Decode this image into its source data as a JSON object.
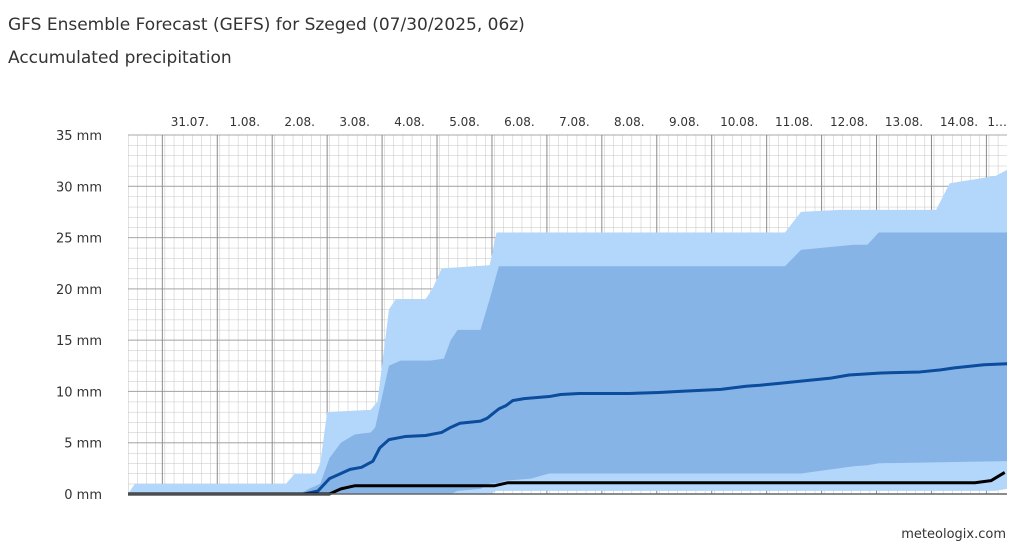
{
  "chart_data": {
    "type": "ensemble",
    "title": "GFS Ensemble Forecast (GEFS) for Szeged (07/30/2025, 06z)",
    "subtitle": "Accumulated precipitation",
    "credit": "meteologix.com",
    "xlim": [
      9,
      393
    ],
    "xticks": [
      {
        "value": 24,
        "label": "31.07."
      },
      {
        "value": 48,
        "label": "1.08."
      },
      {
        "value": 72,
        "label": "2.08."
      },
      {
        "value": 96,
        "label": "3.08."
      },
      {
        "value": 120,
        "label": "4.08."
      },
      {
        "value": 144,
        "label": "5.08."
      },
      {
        "value": 168,
        "label": "6.08."
      },
      {
        "value": 192,
        "label": "7.08."
      },
      {
        "value": 216,
        "label": "8.08."
      },
      {
        "value": 240,
        "label": "9.08."
      },
      {
        "value": 264,
        "label": "10.08."
      },
      {
        "value": 288,
        "label": "11.08."
      },
      {
        "value": 312,
        "label": "12.08."
      },
      {
        "value": 336,
        "label": "13.08."
      },
      {
        "value": 360,
        "label": "14.08."
      },
      {
        "value": 384,
        "label": "1…"
      }
    ],
    "ylim": [
      0,
      35
    ],
    "yticks": [
      {
        "value": 0,
        "label": "0 mm"
      },
      {
        "value": 5,
        "label": "5 mm"
      },
      {
        "value": 10,
        "label": "10 mm"
      },
      {
        "value": 15,
        "label": "15 mm"
      },
      {
        "value": 20,
        "label": "20 mm"
      },
      {
        "value": 25,
        "label": "25 mm"
      },
      {
        "value": 30,
        "label": "30 mm"
      },
      {
        "value": 35,
        "label": "35 mm"
      }
    ],
    "grid": true,
    "bands": [
      {
        "color": "#b3d6fb",
        "x": [
          9,
          12,
          78,
          82,
          91,
          93,
          96,
          115,
          118,
          123,
          126,
          139,
          142,
          146,
          167,
          170,
          296,
          303,
          320,
          362,
          368,
          388,
          393
        ],
        "high": [
          0,
          1,
          1,
          2,
          2,
          3,
          8,
          8.2,
          9,
          18,
          19,
          19,
          20,
          22,
          22.3,
          25.5,
          25.5,
          27.5,
          27.7,
          27.7,
          30.3,
          31,
          31.6
        ],
        "low": [
          0,
          0,
          0,
          0,
          0,
          0,
          0,
          0,
          0,
          0,
          0,
          0,
          0,
          0,
          0,
          0.3,
          0.3,
          0.3,
          0.3,
          0.3,
          0.3,
          0.3,
          0.5
        ]
      },
      {
        "color": "#87b4e6",
        "x": [
          9,
          84,
          88,
          93,
          97,
          102,
          108,
          115,
          117,
          123,
          128,
          141,
          147,
          150,
          153,
          163,
          167,
          171,
          174,
          185,
          193,
          296,
          303,
          326,
          332,
          337,
          393
        ],
        "high": [
          0,
          0,
          0.5,
          1,
          3.5,
          5,
          5.8,
          6,
          6.5,
          12.5,
          13,
          13,
          13.2,
          15,
          16,
          16,
          19,
          22.2,
          22.2,
          22.2,
          22.2,
          22.2,
          23.8,
          24.3,
          24.3,
          25.5,
          25.5
        ],
        "low": [
          0,
          0,
          0,
          0,
          0,
          0,
          0,
          0,
          0,
          0,
          0,
          0,
          0,
          0,
          0.3,
          0.5,
          1,
          1.1,
          1.3,
          1.5,
          2,
          2,
          2,
          2.7,
          2.8,
          3,
          3.2
        ]
      }
    ],
    "series": [
      {
        "color": "#0b4c9c",
        "x": [
          9,
          86,
          92,
          97,
          102,
          106,
          111,
          116,
          119,
          123,
          130,
          139,
          146,
          150,
          154,
          163,
          166,
          171,
          174,
          177,
          182,
          193,
          198,
          206,
          228,
          241,
          250,
          268,
          279,
          285,
          294,
          303,
          316,
          324,
          338,
          355,
          364,
          370,
          383,
          393
        ],
        "values": [
          0,
          0,
          0.3,
          1.5,
          2,
          2.4,
          2.6,
          3.2,
          4.5,
          5.3,
          5.6,
          5.7,
          6,
          6.5,
          6.9,
          7.1,
          7.4,
          8.3,
          8.6,
          9.1,
          9.3,
          9.5,
          9.7,
          9.8,
          9.8,
          9.9,
          10,
          10.2,
          10.5,
          10.6,
          10.8,
          11,
          11.3,
          11.6,
          11.8,
          11.9,
          12.1,
          12.3,
          12.6,
          12.7
        ]
      },
      {
        "color": "#000000",
        "x": [
          9,
          97,
          102,
          106,
          108,
          169,
          175,
          379,
          386,
          392
        ],
        "values": [
          0,
          0,
          0.5,
          0.7,
          0.8,
          0.8,
          1.1,
          1.1,
          1.3,
          2.1
        ]
      }
    ]
  }
}
